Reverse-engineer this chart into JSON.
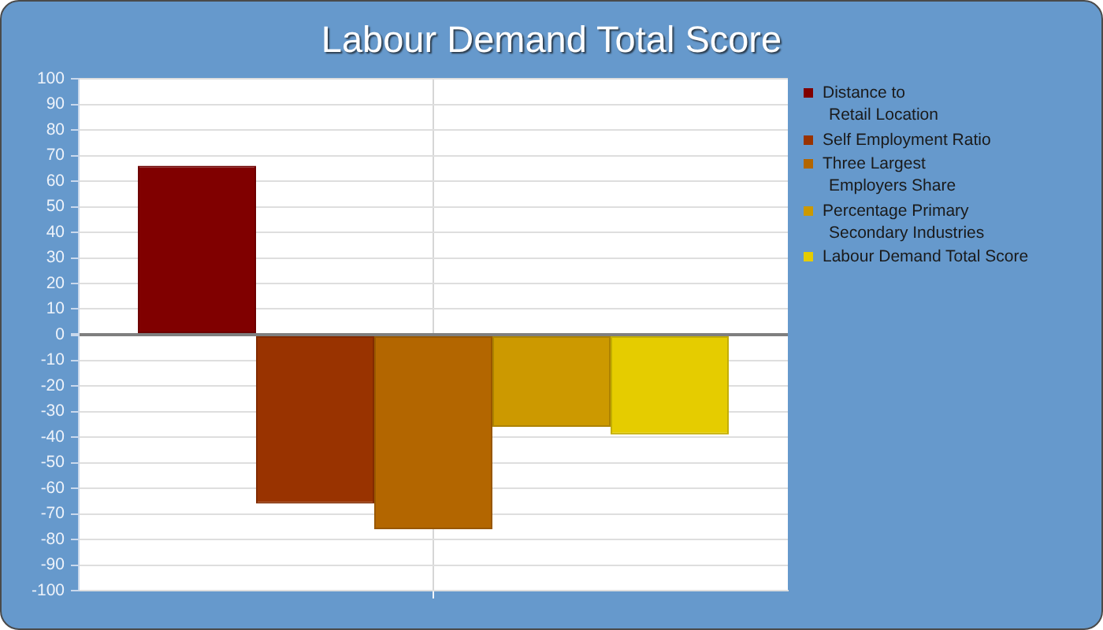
{
  "chart_data": {
    "type": "bar",
    "title": "Labour Demand Total Score",
    "categories": [
      null
    ],
    "series": [
      {
        "name": "Distance to Retail Location",
        "color": "#800000",
        "values": [
          66
        ]
      },
      {
        "name": "Self Employment Ratio",
        "color": "#993300",
        "values": [
          -66
        ]
      },
      {
        "name": "Three Largest Employers Share",
        "color": "#b36600",
        "values": [
          -76
        ]
      },
      {
        "name": "Percentage Primary Secondary Industries",
        "color": "#cc9900",
        "values": [
          -36
        ]
      },
      {
        "name": "Labour Demand Total Score",
        "color": "#e5cc00",
        "values": [
          -39
        ]
      }
    ],
    "ylim": [
      -100,
      100
    ],
    "yticks": [
      -100,
      -90,
      -80,
      -70,
      -60,
      -50,
      -40,
      -30,
      -20,
      -10,
      0,
      10,
      20,
      30,
      40,
      50,
      60,
      70,
      80,
      90,
      100
    ],
    "grid": true,
    "legend": "right"
  }
}
